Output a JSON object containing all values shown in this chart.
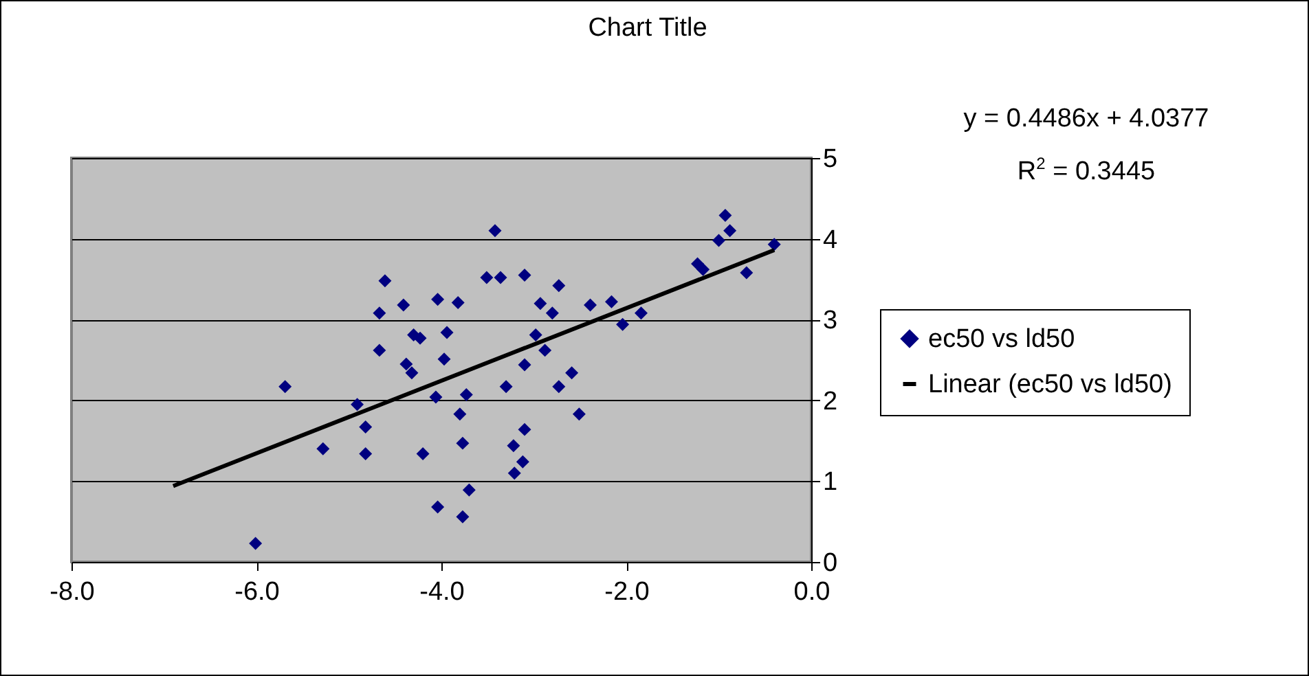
{
  "chart_data": {
    "type": "scatter",
    "title": "Chart Title",
    "annotations": [
      "y = 0.4486x + 4.0377",
      "R$^{2}$ = 0.3445"
    ],
    "xlim": [
      -8,
      0
    ],
    "xticks": [
      {
        "value": -8,
        "label": "-8.0"
      },
      {
        "value": -6,
        "label": "-6.0"
      },
      {
        "value": -4,
        "label": "-4.0"
      },
      {
        "value": -2,
        "label": "-2.0"
      },
      {
        "value": 0,
        "label": "0.0"
      }
    ],
    "ylim": [
      0,
      5
    ],
    "yticks": [
      0,
      1,
      2,
      3,
      4,
      5
    ],
    "grid": "y",
    "legend": "right",
    "series": [
      {
        "name": "ec50 vs ld50",
        "color": "#000080",
        "marker": "diamond",
        "x": [
          -6.01,
          -5.69,
          -5.28,
          -4.91,
          -4.82,
          -4.82,
          -4.67,
          -4.67,
          -4.61,
          -4.41,
          -4.3,
          -4.23,
          -4.38,
          -4.32,
          -4.2,
          -4.04,
          -3.82,
          -3.94,
          -3.97,
          -4.06,
          -4.04,
          -3.73,
          -3.8,
          -3.77,
          -3.7,
          -3.77,
          -3.42,
          -3.51,
          -3.36,
          -3.1,
          -3.3,
          -3.1,
          -3.22,
          -3.1,
          -3.12,
          -3.21,
          -2.93,
          -2.8,
          -2.73,
          -2.98,
          -2.88,
          -2.73,
          -2.59,
          -2.51,
          -2.39,
          -2.16,
          -2.04,
          -1.84,
          -1.23,
          -1.17,
          -0.93,
          -1.0,
          -0.88,
          -0.7,
          -0.4
        ],
        "values": [
          0.23,
          2.17,
          1.4,
          1.95,
          1.67,
          1.34,
          2.62,
          3.08,
          3.48,
          3.18,
          2.81,
          2.77,
          2.45,
          2.34,
          1.34,
          3.25,
          3.21,
          2.84,
          2.51,
          2.04,
          0.68,
          2.07,
          1.83,
          1.47,
          0.89,
          0.56,
          4.1,
          3.52,
          3.52,
          3.55,
          2.17,
          2.44,
          1.44,
          1.64,
          1.24,
          1.1,
          3.2,
          3.08,
          3.42,
          2.81,
          2.62,
          2.17,
          2.34,
          1.83,
          3.18,
          3.22,
          2.94,
          3.08,
          3.69,
          3.62,
          4.29,
          3.98,
          4.1,
          3.58,
          3.93
        ]
      },
      {
        "name": "Linear (ec50 vs ld50)",
        "color": "#000000",
        "type": "line",
        "line_style": "solid",
        "x": [
          -6.9,
          -0.4
        ],
        "values": [
          0.94,
          3.86
        ]
      }
    ]
  }
}
